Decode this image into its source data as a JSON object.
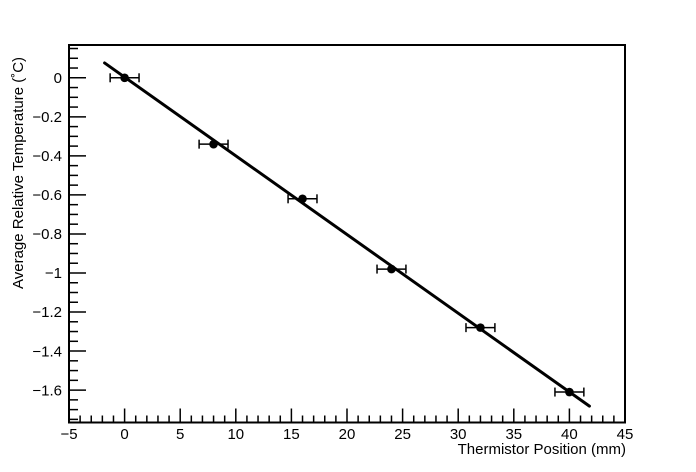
{
  "chart_data": {
    "type": "scatter",
    "title": "",
    "xlabel": "Thermistor Position (mm)",
    "ylabel": "Average Relative Temperature (˚C)",
    "xlim": [
      -5,
      45
    ],
    "ylim": [
      -1.766,
      0.168
    ],
    "grid": false,
    "legend": null,
    "background_color": "#ffffff",
    "axis_color": "#000000",
    "x_ticks": [
      {
        "v": -5,
        "label": "−5"
      },
      {
        "v": 0,
        "label": "0"
      },
      {
        "v": 5,
        "label": "5"
      },
      {
        "v": 10,
        "label": "10"
      },
      {
        "v": 15,
        "label": "15"
      },
      {
        "v": 20,
        "label": "20"
      },
      {
        "v": 25,
        "label": "25"
      },
      {
        "v": 30,
        "label": "30"
      },
      {
        "v": 35,
        "label": "35"
      },
      {
        "v": 40,
        "label": "40"
      },
      {
        "v": 45,
        "label": "45"
      }
    ],
    "x_minor_step": 1,
    "y_ticks": [
      {
        "v": 0,
        "label": "0"
      },
      {
        "v": -0.2,
        "label": "−0.2"
      },
      {
        "v": -0.4,
        "label": "−0.4"
      },
      {
        "v": -0.6,
        "label": "−0.6"
      },
      {
        "v": -0.8,
        "label": "−0.8"
      },
      {
        "v": -1,
        "label": "−1"
      },
      {
        "v": -1.2,
        "label": "−1.2"
      },
      {
        "v": -1.4,
        "label": "−1.4"
      },
      {
        "v": -1.6,
        "label": "−1.6"
      }
    ],
    "y_minor_step": 0.05,
    "series": [
      {
        "name": "thermistor-data",
        "marker": "filled-circle",
        "color": "#000000",
        "points": [
          {
            "x": 0,
            "y": 0.0,
            "xerr": 1.3
          },
          {
            "x": 8,
            "y": -0.34,
            "xerr": 1.3
          },
          {
            "x": 16,
            "y": -0.62,
            "xerr": 1.3
          },
          {
            "x": 24,
            "y": -0.98,
            "xerr": 1.3
          },
          {
            "x": 32,
            "y": -1.28,
            "xerr": 1.3
          },
          {
            "x": 40,
            "y": -1.61,
            "xerr": 1.3
          }
        ]
      }
    ],
    "fit_line": {
      "name": "linear-fit",
      "color": "#000000",
      "x1": -1.8,
      "y1": 0.076,
      "x2": 41.8,
      "y2": -1.682
    }
  }
}
